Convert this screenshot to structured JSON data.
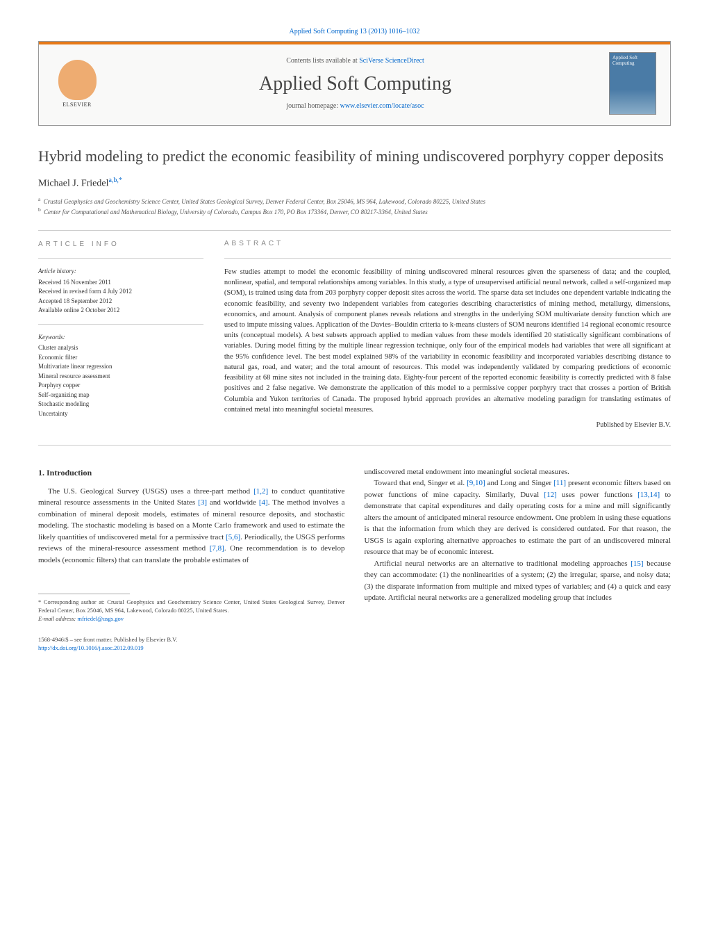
{
  "header": {
    "citation_link": "Applied Soft Computing 13 (2013) 1016–1032",
    "contents_text": "Contents lists available at ",
    "contents_link": "SciVerse ScienceDirect",
    "journal_title": "Applied Soft Computing",
    "homepage_label": "journal homepage: ",
    "homepage_url": "www.elsevier.com/locate/asoc",
    "publisher_name": "ELSEVIER",
    "cover_text": "Applied Soft Computing",
    "colors": {
      "accent": "#e67817",
      "link": "#0066cc",
      "text": "#333333",
      "box_bg": "#f9f9f8",
      "border": "#999999"
    }
  },
  "article": {
    "title": "Hybrid modeling to predict the economic feasibility of mining undiscovered porphyry copper deposits",
    "author_name": "Michael J. Friedel",
    "author_markers": "a,b,*",
    "affiliations": {
      "a": "Crustal Geophysics and Geochemistry Science Center, United States Geological Survey, Denver Federal Center, Box 25046, MS 964, Lakewood, Colorado 80225, United States",
      "b": "Center for Computational and Mathematical Biology, University of Colorado, Campus Box 170, PO Box 173364, Denver, CO 80217-3364, United States"
    }
  },
  "article_info": {
    "heading": "ARTICLE INFO",
    "history_heading": "Article history:",
    "history": [
      "Received 16 November 2011",
      "Received in revised form 4 July 2012",
      "Accepted 18 September 2012",
      "Available online 2 October 2012"
    ],
    "keywords_heading": "Keywords:",
    "keywords": [
      "Cluster analysis",
      "Economic filter",
      "Multivariate linear regression",
      "Mineral resource assessment",
      "Porphyry copper",
      "Self-organizing map",
      "Stochastic modeling",
      "Uncertainty"
    ]
  },
  "abstract": {
    "heading": "ABSTRACT",
    "text": "Few studies attempt to model the economic feasibility of mining undiscovered mineral resources given the sparseness of data; and the coupled, nonlinear, spatial, and temporal relationships among variables. In this study, a type of unsupervised artificial neural network, called a self-organized map (SOM), is trained using data from 203 porphyry copper deposit sites across the world. The sparse data set includes one dependent variable indicating the economic feasibility, and seventy two independent variables from categories describing characteristics of mining method, metallurgy, dimensions, economics, and amount. Analysis of component planes reveals relations and strengths in the underlying SOM multivariate density function which are used to impute missing values. Application of the Davies–Bouldin criteria to k-means clusters of SOM neurons identified 14 regional economic resource units (conceptual models). A best subsets approach applied to median values from these models identified 20 statistically significant combinations of variables. During model fitting by the multiple linear regression technique, only four of the empirical models had variables that were all significant at the 95% confidence level. The best model explained 98% of the variability in economic feasibility and incorporated variables describing distance to natural gas, road, and water; and the total amount of resources. This model was independently validated by comparing predictions of economic feasibility at 68 mine sites not included in the training data. Eighty-four percent of the reported economic feasibility is correctly predicted with 8 false positives and 2 false negative. We demonstrate the application of this model to a permissive copper porphyry tract that crosses a portion of British Columbia and Yukon territories of Canada. The proposed hybrid approach provides an alternative modeling paradigm for translating estimates of contained metal into meaningful societal measures.",
    "publisher": "Published by Elsevier B.V."
  },
  "body": {
    "section_number": "1.",
    "section_title": "Introduction",
    "col1_p1_a": "The U.S. Geological Survey (USGS) uses a three-part method ",
    "col1_p1_ref1": "[1,2]",
    "col1_p1_b": " to conduct quantitative mineral resource assessments in the United States ",
    "col1_p1_ref2": "[3]",
    "col1_p1_c": " and worldwide ",
    "col1_p1_ref3": "[4]",
    "col1_p1_d": ". The method involves a combination of mineral deposit models, estimates of mineral resource deposits, and stochastic modeling. The stochastic modeling is based on a Monte Carlo framework and used to estimate the likely quantities of undiscovered metal for a permissive tract ",
    "col1_p1_ref4": "[5,6]",
    "col1_p1_e": ". Periodically, the USGS performs reviews of the mineral-resource assessment method ",
    "col1_p1_ref5": "[7,8]",
    "col1_p1_f": ". One recommendation is to develop models (economic filters) that can translate the probable estimates of",
    "col2_p1": "undiscovered metal endowment into meaningful societal measures.",
    "col2_p2_a": "Toward that end, Singer et al. ",
    "col2_p2_ref1": "[9,10]",
    "col2_p2_b": " and Long and Singer ",
    "col2_p2_ref2": "[11]",
    "col2_p2_c": " present economic filters based on power functions of mine capacity. Similarly, Duval ",
    "col2_p2_ref3": "[12]",
    "col2_p2_d": " uses power functions ",
    "col2_p2_ref4": "[13,14]",
    "col2_p2_e": " to demonstrate that capital expenditures and daily operating costs for a mine and mill significantly alters the amount of anticipated mineral resource endowment. One problem in using these equations is that the information from which they are derived is considered outdated. For that reason, the USGS is again exploring alternative approaches to estimate the part of an undiscovered mineral resource that may be of economic interest.",
    "col2_p3_a": "Artificial neural networks are an alternative to traditional modeling approaches ",
    "col2_p3_ref1": "[15]",
    "col2_p3_b": " because they can accommodate: (1) the nonlinearities of a system; (2) the irregular, sparse, and noisy data; (3) the disparate information from multiple and mixed types of variables; and (4) a quick and easy update. Artificial neural networks are a generalized modeling group that includes"
  },
  "footnotes": {
    "corresponding": "* Corresponding author at: Crustal Geophysics and Geochemistry Science Center, United States Geological Survey, Denver Federal Center, Box 25046, MS 964, Lakewood, Colorado 80225, United States.",
    "email_label": "E-mail address: ",
    "email": "mfriedel@usgs.gov"
  },
  "footer": {
    "issn_line": "1568-4946/$ – see front matter. Published by Elsevier B.V.",
    "doi": "http://dx.doi.org/10.1016/j.asoc.2012.09.019"
  }
}
